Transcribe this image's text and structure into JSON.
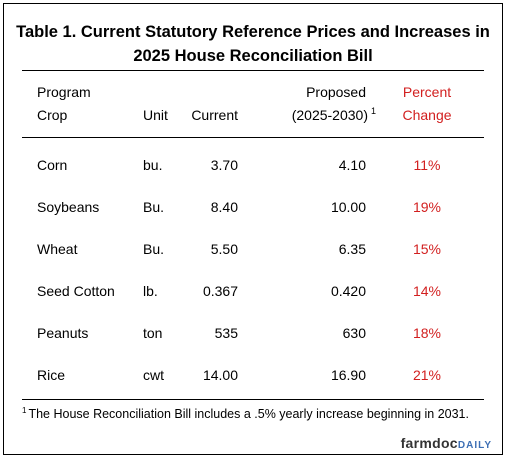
{
  "table": {
    "title_line1": "Table 1.  Current Statutory Reference Prices and Increases in",
    "title_line2": "2025 House Reconciliation Bill",
    "headers": {
      "program": "Program",
      "crop": "Crop",
      "unit": "Unit",
      "current": "Current",
      "proposed_line1": "Proposed",
      "proposed_line2": "(2025-2030)",
      "proposed_footnote_mark": "1",
      "percent_line1": "Percent",
      "percent_line2": "Change"
    },
    "rows": [
      {
        "crop": "Corn",
        "unit": "bu.",
        "current": "3.70",
        "proposed": "4.10",
        "pct": "11%"
      },
      {
        "crop": "Soybeans",
        "unit": "Bu.",
        "current": "8.40",
        "proposed": "10.00",
        "pct": "19%"
      },
      {
        "crop": "Wheat",
        "unit": "Bu.",
        "current": "5.50",
        "proposed": "6.35",
        "pct": "15%"
      },
      {
        "crop": "Seed Cotton",
        "unit": "lb.",
        "current": "0.367",
        "proposed": "0.420",
        "pct": "14%"
      },
      {
        "crop": "Peanuts",
        "unit": "ton",
        "current": "535",
        "proposed": "630",
        "pct": "18%"
      },
      {
        "crop": "Rice",
        "unit": "cwt",
        "current": "14.00",
        "proposed": "16.90",
        "pct": "21%"
      }
    ],
    "footnote_mark": "1",
    "footnote": "The House Reconciliation Bill includes a .5% yearly increase beginning in 2031."
  },
  "logo": {
    "main": "farmdoc",
    "daily": "DAILY"
  },
  "colors": {
    "accent_red": "#d21f1f",
    "logo_blue": "#3d6fb4"
  }
}
